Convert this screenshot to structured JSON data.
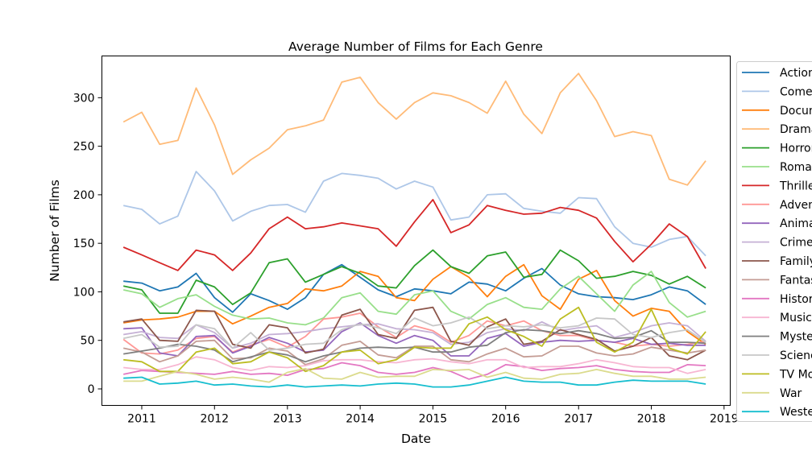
{
  "chart_data": {
    "type": "line",
    "title": "Average Number of Films for Each Genre",
    "xlabel": "Date",
    "ylabel": "Number of Films",
    "x_ticks": [
      "2011",
      "2012",
      "2013",
      "2014",
      "2015",
      "2016",
      "2017",
      "2018",
      "2019"
    ],
    "y_ticks": [
      "0",
      "50",
      "100",
      "150",
      "200",
      "250",
      "300"
    ],
    "xlim": [
      "2010-06-15",
      "2019-02-01"
    ],
    "ylim": [
      -17,
      343
    ],
    "grid": false,
    "legend_position": "right (partly clipped)",
    "x": [
      "2010-10-01",
      "2011-01-01",
      "2011-04-01",
      "2011-07-01",
      "2011-10-01",
      "2012-01-01",
      "2012-04-01",
      "2012-07-01",
      "2012-10-01",
      "2013-01-01",
      "2013-04-01",
      "2013-07-01",
      "2013-10-01",
      "2014-01-01",
      "2014-04-01",
      "2014-07-01",
      "2014-10-01",
      "2015-01-01",
      "2015-04-01",
      "2015-07-01",
      "2015-10-01",
      "2016-01-01",
      "2016-04-01",
      "2016-07-01",
      "2016-10-01",
      "2017-01-01",
      "2017-04-01",
      "2017-07-01",
      "2017-10-01",
      "2018-01-01",
      "2018-04-01",
      "2018-07-01",
      "2018-10-01"
    ],
    "series": [
      {
        "name": "Action",
        "color": "#1f77b4",
        "values": [
          111,
          109,
          101,
          105,
          119,
          94,
          79,
          98,
          91,
          82,
          94,
          118,
          128,
          115,
          102,
          95,
          103,
          101,
          98,
          110,
          108,
          101,
          114,
          124,
          107,
          98,
          95,
          94,
          92,
          97,
          105,
          101,
          87
        ]
      },
      {
        "name": "Comedy",
        "color": "#aec7e8",
        "values": [
          189,
          185,
          170,
          178,
          224,
          204,
          173,
          183,
          189,
          190,
          182,
          214,
          222,
          220,
          217,
          206,
          214,
          208,
          174,
          177,
          200,
          201,
          186,
          183,
          181,
          197,
          196,
          167,
          150,
          146,
          154,
          157,
          137
        ]
      },
      {
        "name": "Documentary",
        "color": "#ff7f0e",
        "values": [
          68,
          71,
          72,
          74,
          80,
          80,
          67,
          75,
          84,
          88,
          103,
          101,
          106,
          121,
          116,
          94,
          91,
          113,
          126,
          115,
          95,
          116,
          128,
          96,
          82,
          113,
          122,
          91,
          75,
          83,
          80,
          59,
          46
        ]
      },
      {
        "name": "Drama",
        "color": "#ffbb78",
        "values": [
          275,
          285,
          252,
          256,
          310,
          272,
          221,
          236,
          248,
          267,
          271,
          277,
          316,
          321,
          295,
          278,
          295,
          305,
          302,
          295,
          284,
          317,
          283,
          263,
          305,
          325,
          297,
          260,
          265,
          261,
          216,
          210,
          235
        ]
      },
      {
        "name": "Horror",
        "color": "#2ca02c",
        "values": [
          106,
          102,
          78,
          78,
          112,
          105,
          87,
          99,
          130,
          134,
          110,
          118,
          126,
          119,
          106,
          104,
          127,
          143,
          126,
          119,
          137,
          141,
          115,
          118,
          143,
          132,
          114,
          116,
          121,
          117,
          108,
          116,
          104
        ]
      },
      {
        "name": "Romance",
        "color": "#98df8a",
        "values": [
          102,
          98,
          84,
          93,
          97,
          85,
          76,
          72,
          73,
          68,
          66,
          73,
          94,
          99,
          80,
          77,
          97,
          101,
          80,
          72,
          87,
          94,
          84,
          82,
          103,
          116,
          98,
          80,
          107,
          121,
          89,
          74,
          80
        ]
      },
      {
        "name": "Thriller",
        "color": "#d62728",
        "values": [
          146,
          138,
          130,
          122,
          143,
          138,
          122,
          140,
          165,
          177,
          165,
          167,
          171,
          168,
          165,
          147,
          172,
          195,
          161,
          169,
          189,
          184,
          180,
          181,
          187,
          184,
          176,
          152,
          131,
          149,
          170,
          157,
          124
        ]
      },
      {
        "name": "Adventure",
        "color": "#ff9896",
        "values": [
          51,
          37,
          36,
          40,
          52,
          54,
          38,
          45,
          51,
          43,
          54,
          72,
          74,
          78,
          64,
          53,
          65,
          60,
          48,
          55,
          70,
          65,
          70,
          60,
          55,
          55,
          50,
          48,
          44,
          46,
          44,
          46,
          49
        ]
      },
      {
        "name": "Animation",
        "color": "#9467bd",
        "values": [
          62,
          63,
          37,
          34,
          54,
          55,
          37,
          44,
          53,
          47,
          38,
          40,
          59,
          68,
          55,
          47,
          55,
          50,
          34,
          34,
          52,
          57,
          44,
          48,
          50,
          49,
          50,
          48,
          52,
          46,
          47,
          45,
          45
        ]
      },
      {
        "name": "Crime",
        "color": "#c5b0d5",
        "values": [
          56,
          59,
          53,
          52,
          66,
          58,
          42,
          47,
          56,
          57,
          59,
          62,
          64,
          66,
          67,
          62,
          61,
          58,
          46,
          48,
          58,
          62,
          60,
          69,
          60,
          63,
          65,
          53,
          58,
          65,
          68,
          65,
          49
        ]
      },
      {
        "name": "Family",
        "color": "#8c564b",
        "values": [
          69,
          72,
          50,
          49,
          81,
          80,
          46,
          42,
          66,
          63,
          37,
          41,
          76,
          82,
          56,
          52,
          81,
          84,
          49,
          45,
          64,
          72,
          46,
          49,
          61,
          56,
          51,
          39,
          44,
          53,
          34,
          30,
          40
        ]
      },
      {
        "name": "Fantasy",
        "color": "#c49c94",
        "values": [
          42,
          38,
          28,
          34,
          49,
          50,
          31,
          32,
          42,
          39,
          25,
          31,
          45,
          49,
          35,
          32,
          44,
          44,
          30,
          28,
          36,
          42,
          33,
          34,
          44,
          44,
          37,
          34,
          36,
          43,
          40,
          37,
          40
        ]
      },
      {
        "name": "History",
        "color": "#e377c2",
        "values": [
          15,
          19,
          18,
          17,
          16,
          15,
          18,
          15,
          16,
          14,
          20,
          21,
          27,
          24,
          17,
          15,
          17,
          22,
          18,
          10,
          15,
          25,
          23,
          19,
          21,
          22,
          24,
          20,
          18,
          17,
          17,
          25,
          24
        ]
      },
      {
        "name": "Music",
        "color": "#f7b6d2",
        "values": [
          22,
          20,
          20,
          25,
          33,
          30,
          22,
          19,
          23,
          22,
          24,
          29,
          30,
          30,
          28,
          27,
          30,
          31,
          28,
          26,
          30,
          30,
          22,
          23,
          23,
          26,
          30,
          27,
          23,
          22,
          22,
          16,
          20
        ]
      },
      {
        "name": "Mystery",
        "color": "#7f7f7f",
        "values": [
          36,
          39,
          42,
          46,
          44,
          40,
          28,
          33,
          38,
          35,
          28,
          34,
          38,
          42,
          43,
          42,
          43,
          38,
          38,
          43,
          45,
          58,
          61,
          60,
          57,
          60,
          57,
          52,
          53,
          60,
          48,
          48,
          47
        ]
      },
      {
        "name": "Science Fiction",
        "color": "#c7c7c7",
        "values": [
          52,
          56,
          43,
          44,
          66,
          62,
          42,
          58,
          40,
          42,
          46,
          47,
          61,
          67,
          63,
          57,
          73,
          65,
          68,
          74,
          62,
          65,
          64,
          66,
          63,
          65,
          73,
          72,
          56,
          53,
          58,
          61,
          48
        ]
      },
      {
        "name": "TV Movie",
        "color": "#bcbd22",
        "values": [
          30,
          28,
          18,
          18,
          38,
          42,
          26,
          28,
          38,
          32,
          18,
          24,
          38,
          40,
          26,
          30,
          43,
          42,
          42,
          67,
          74,
          61,
          54,
          44,
          72,
          84,
          48,
          38,
          48,
          82,
          42,
          36,
          59
        ]
      },
      {
        "name": "War",
        "color": "#dbdb8d",
        "values": [
          8,
          8,
          13,
          18,
          15,
          10,
          12,
          10,
          7,
          17,
          21,
          11,
          10,
          17,
          12,
          13,
          13,
          20,
          19,
          20,
          12,
          17,
          11,
          10,
          15,
          16,
          20,
          16,
          13,
          13,
          10,
          10,
          12
        ]
      },
      {
        "name": "Western",
        "color": "#17becf",
        "values": [
          11,
          12,
          5,
          6,
          8,
          4,
          5,
          3,
          2,
          4,
          2,
          3,
          4,
          3,
          5,
          6,
          5,
          2,
          2,
          4,
          8,
          12,
          8,
          7,
          7,
          4,
          4,
          7,
          9,
          8,
          8,
          8,
          5
        ]
      }
    ]
  }
}
